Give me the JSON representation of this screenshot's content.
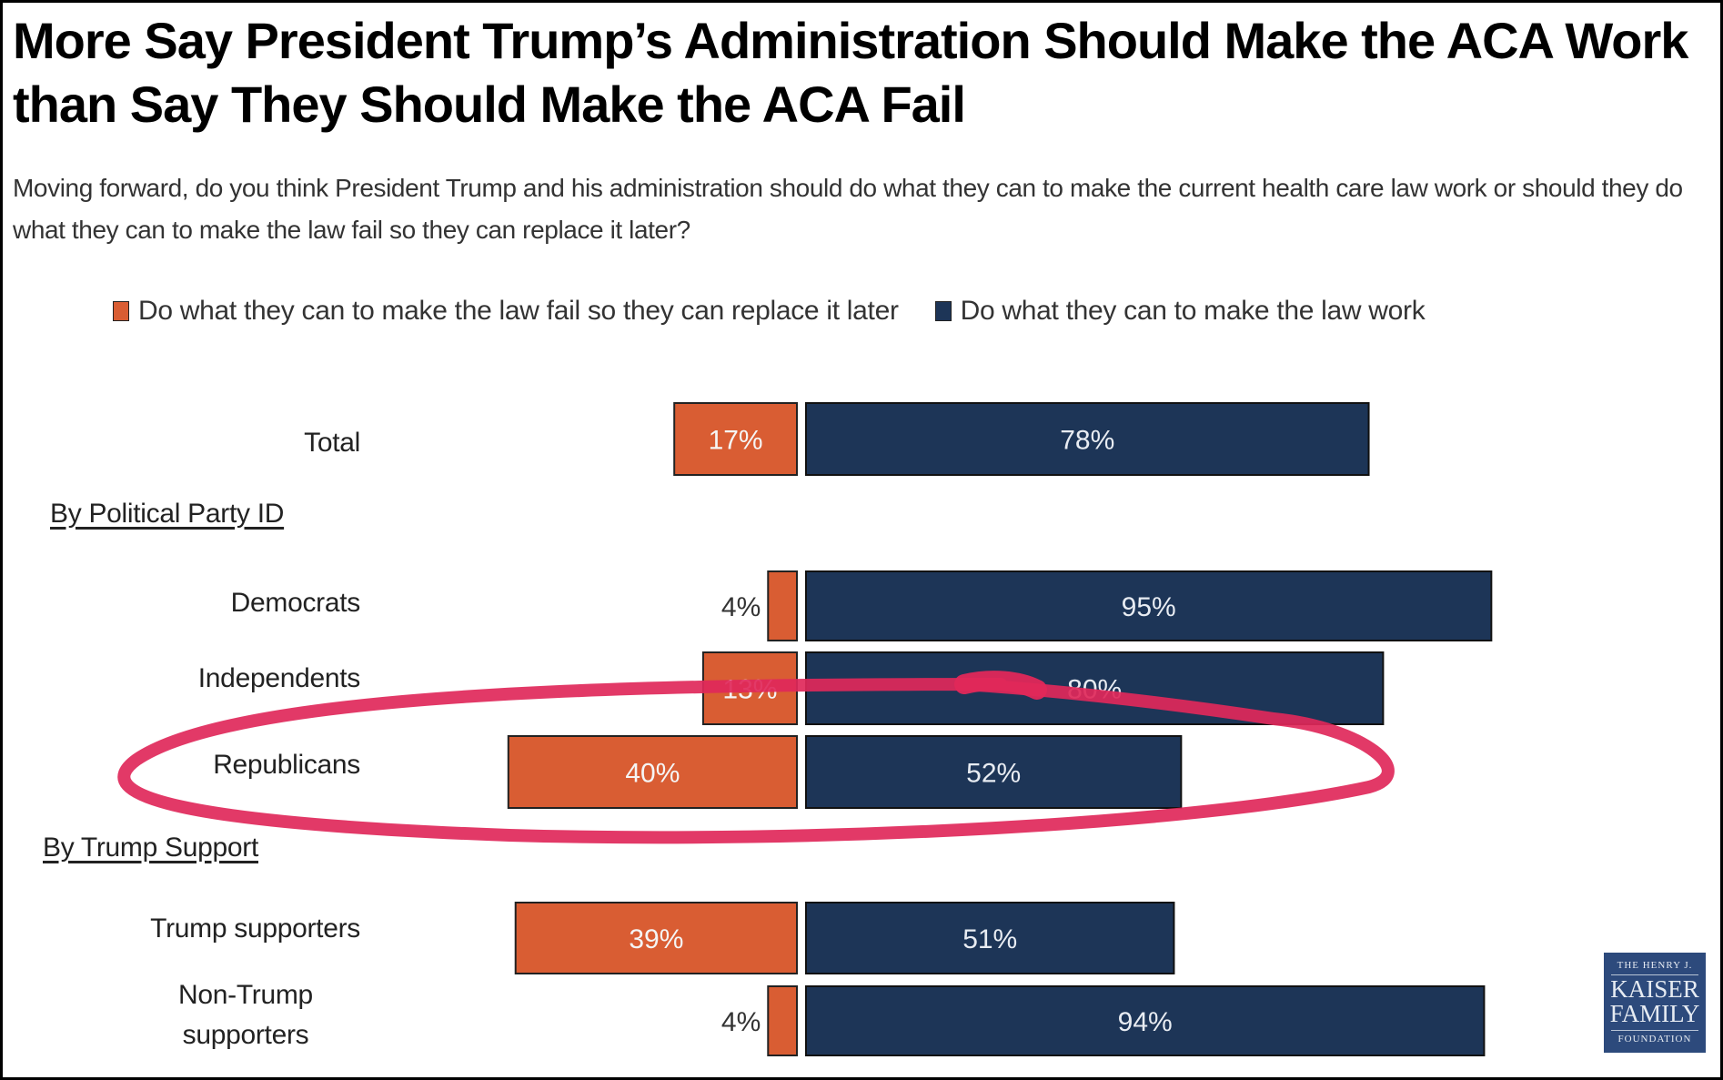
{
  "title": "More Say President Trump’s Administration Should Make the ACA Work than Say They Should Make the ACA Fail",
  "subtitle": "Moving forward, do you think President Trump and his administration should do what they can to make the current health care law work or should they do what they can to make the law fail so they can replace it later?",
  "legend": {
    "fail": "Do what they can to make the law fail so they can replace it later",
    "work": "Do what they can to make the law work"
  },
  "sections": {
    "party": "By Political Party ID",
    "trump": "By Trump Support"
  },
  "logo": {
    "line1": "THE HENRY J.",
    "line2": "KAISER",
    "line3": "FAMILY",
    "line4": "FOUNDATION"
  },
  "colors": {
    "fail": "#D95D33",
    "work": "#1D3557",
    "annotation": "#E0285A"
  },
  "chart_data": {
    "type": "bar",
    "orientation": "horizontal-diverging",
    "title": "More Say President Trump’s Administration Should Make the ACA Work than Say They Should Make the ACA Fail",
    "categories": [
      "Total",
      "Democrats",
      "Independents",
      "Republicans",
      "Trump supporters",
      "Non-Trump supporters"
    ],
    "groups": [
      {
        "heading": null,
        "categories": [
          "Total"
        ]
      },
      {
        "heading": "By Political Party ID",
        "categories": [
          "Democrats",
          "Independents",
          "Republicans"
        ]
      },
      {
        "heading": "By Trump Support",
        "categories": [
          "Trump supporters",
          "Non-Trump supporters"
        ]
      }
    ],
    "series": [
      {
        "name": "Do what they can to make the law fail so they can replace it later",
        "values": [
          17,
          4,
          13,
          40,
          39,
          4
        ]
      },
      {
        "name": "Do what they can to make the law work",
        "values": [
          78,
          95,
          80,
          52,
          51,
          94
        ]
      }
    ],
    "value_suffix": "%",
    "xlabel": "",
    "ylabel": "",
    "legend_position": "top",
    "annotation": "hand-drawn ellipse highlighting Republicans row",
    "grid": false
  }
}
